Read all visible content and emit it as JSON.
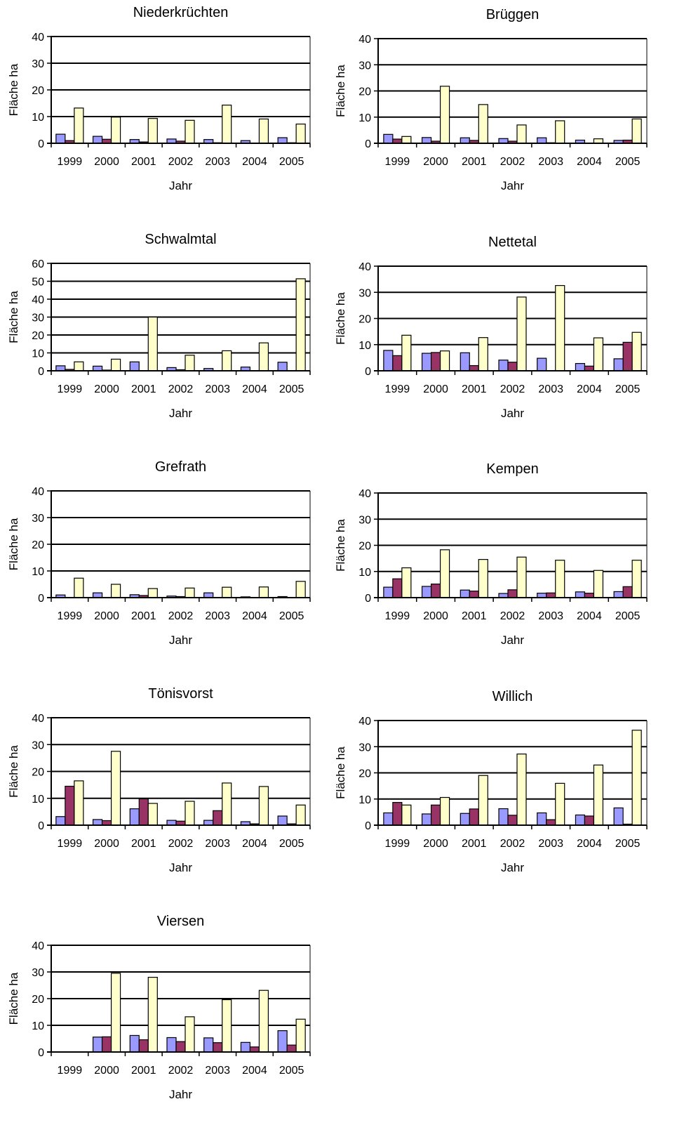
{
  "series_colors": [
    "#9999ff",
    "#993366",
    "#ffffcc"
  ],
  "chart_data": [
    {
      "type": "bar",
      "title": "Niederkrüchten",
      "xlabel": "Jahr",
      "ylabel": "Fläche ha",
      "categories": [
        "1999",
        "2000",
        "2001",
        "2002",
        "2003",
        "2004",
        "2005"
      ],
      "ylim": [
        0,
        40
      ],
      "yticks": [
        "0",
        "10",
        "20",
        "30",
        "40"
      ],
      "grid": true,
      "series": [
        {
          "values": [
            3.4,
            2.6,
            1.4,
            1.6,
            1.4,
            1.0,
            2.1
          ]
        },
        {
          "values": [
            1.0,
            1.5,
            0.5,
            0.8,
            0.2,
            0.0,
            0.2
          ]
        },
        {
          "values": [
            13.2,
            9.8,
            9.3,
            8.6,
            14.3,
            9.1,
            7.2
          ]
        }
      ]
    },
    {
      "type": "bar",
      "title": "Brüggen",
      "xlabel": "Jahr",
      "ylabel": "Fläche ha",
      "categories": [
        "1999",
        "2000",
        "2001",
        "2002",
        "2003",
        "2004",
        "2005"
      ],
      "ylim": [
        0,
        40
      ],
      "yticks": [
        "0",
        "10",
        "20",
        "30",
        "40"
      ],
      "grid": true,
      "series": [
        {
          "values": [
            3.4,
            2.2,
            2.1,
            1.8,
            2.1,
            1.2,
            1.1
          ]
        },
        {
          "values": [
            1.6,
            0.8,
            1.1,
            0.8,
            0.2,
            0.0,
            1.2
          ]
        },
        {
          "values": [
            2.6,
            21.8,
            14.8,
            7.0,
            8.6,
            1.7,
            9.3
          ]
        }
      ]
    },
    {
      "type": "bar",
      "title": "Schwalmtal",
      "xlabel": "Jahr",
      "ylabel": "Fläche ha",
      "categories": [
        "1999",
        "2000",
        "2001",
        "2002",
        "2003",
        "2004",
        "2005"
      ],
      "ylim": [
        0,
        60
      ],
      "yticks": [
        "0",
        "10",
        "20",
        "30",
        "40",
        "50",
        "60"
      ],
      "grid": true,
      "series": [
        {
          "values": [
            2.8,
            2.6,
            5.0,
            1.8,
            1.3,
            2.1,
            4.8
          ]
        },
        {
          "values": [
            0.8,
            0.4,
            0.0,
            0.6,
            0.0,
            0.0,
            0.0
          ]
        },
        {
          "values": [
            5.0,
            6.5,
            30.0,
            8.7,
            11.2,
            15.6,
            51.4
          ]
        }
      ]
    },
    {
      "type": "bar",
      "title": "Nettetal",
      "xlabel": "Jahr",
      "ylabel": "Fläche ha",
      "categories": [
        "1999",
        "2000",
        "2001",
        "2002",
        "2003",
        "2004",
        "2005"
      ],
      "ylim": [
        0,
        40
      ],
      "yticks": [
        "0",
        "10",
        "20",
        "30",
        "40"
      ],
      "grid": true,
      "series": [
        {
          "values": [
            7.8,
            6.7,
            6.9,
            4.1,
            4.8,
            2.8,
            4.6
          ]
        },
        {
          "values": [
            5.8,
            7.0,
            2.0,
            3.3,
            0.0,
            1.8,
            10.9
          ]
        },
        {
          "values": [
            13.6,
            7.6,
            12.7,
            28.2,
            32.6,
            12.6,
            14.7
          ]
        }
      ]
    },
    {
      "type": "bar",
      "title": "Grefrath",
      "xlabel": "Jahr",
      "ylabel": "Fläche ha",
      "categories": [
        "1999",
        "2000",
        "2001",
        "2002",
        "2003",
        "2004",
        "2005"
      ],
      "ylim": [
        0,
        40
      ],
      "yticks": [
        "0",
        "10",
        "20",
        "30",
        "40"
      ],
      "grid": true,
      "series": [
        {
          "values": [
            1.0,
            1.8,
            1.1,
            0.6,
            1.8,
            0.3,
            0.4
          ]
        },
        {
          "values": [
            0.0,
            0.0,
            0.8,
            0.4,
            0.0,
            0.0,
            0.0
          ]
        },
        {
          "values": [
            7.3,
            5.0,
            3.4,
            3.6,
            3.9,
            4.0,
            6.1
          ]
        }
      ]
    },
    {
      "type": "bar",
      "title": "Kempen",
      "xlabel": "Jahr",
      "ylabel": "Fläche ha",
      "categories": [
        "1999",
        "2000",
        "2001",
        "2002",
        "2003",
        "2004",
        "2005"
      ],
      "ylim": [
        0,
        40
      ],
      "yticks": [
        "0",
        "10",
        "20",
        "30",
        "40"
      ],
      "grid": true,
      "series": [
        {
          "values": [
            4.0,
            4.3,
            2.9,
            1.6,
            1.7,
            2.2,
            2.3
          ]
        },
        {
          "values": [
            7.2,
            5.2,
            2.5,
            3.0,
            1.8,
            1.7,
            4.2
          ]
        },
        {
          "values": [
            11.4,
            18.3,
            14.6,
            15.5,
            14.3,
            10.4,
            14.3
          ]
        }
      ]
    },
    {
      "type": "bar",
      "title": "Tönisvorst",
      "xlabel": "Jahr",
      "ylabel": "Fläche ha",
      "categories": [
        "1999",
        "2000",
        "2001",
        "2002",
        "2003",
        "2004",
        "2005"
      ],
      "ylim": [
        0,
        40
      ],
      "yticks": [
        "0",
        "10",
        "20",
        "30",
        "40"
      ],
      "grid": true,
      "series": [
        {
          "values": [
            3.2,
            2.1,
            6.1,
            1.8,
            1.8,
            1.3,
            3.4
          ]
        },
        {
          "values": [
            14.5,
            1.7,
            9.8,
            1.5,
            5.4,
            0.5,
            0.5
          ]
        },
        {
          "values": [
            16.5,
            27.5,
            8.1,
            8.9,
            15.7,
            14.4,
            7.5
          ]
        }
      ]
    },
    {
      "type": "bar",
      "title": "Willich",
      "xlabel": "Jahr",
      "ylabel": "Fläche ha",
      "categories": [
        "1999",
        "2000",
        "2001",
        "2002",
        "2003",
        "2004",
        "2005"
      ],
      "ylim": [
        0,
        40
      ],
      "yticks": [
        "0",
        "10",
        "20",
        "30",
        "40"
      ],
      "grid": true,
      "series": [
        {
          "values": [
            4.7,
            4.3,
            4.5,
            6.3,
            4.7,
            3.9,
            6.6
          ]
        },
        {
          "values": [
            8.7,
            7.7,
            6.2,
            3.8,
            2.1,
            3.5,
            0.4
          ]
        },
        {
          "values": [
            7.7,
            10.6,
            19.0,
            27.2,
            16.0,
            23.0,
            36.3
          ]
        }
      ]
    },
    {
      "type": "bar",
      "title": "Viersen",
      "xlabel": "Jahr",
      "ylabel": "Fläche ha",
      "categories": [
        "1999",
        "2000",
        "2001",
        "2002",
        "2003",
        "2004",
        "2005"
      ],
      "ylim": [
        0,
        40
      ],
      "yticks": [
        "0",
        "10",
        "20",
        "30",
        "40"
      ],
      "grid": true,
      "series": [
        {
          "values": [
            0.0,
            5.6,
            6.2,
            5.4,
            5.3,
            3.6,
            8.0
          ]
        },
        {
          "values": [
            0.0,
            5.7,
            4.6,
            3.9,
            3.5,
            1.9,
            2.6
          ]
        },
        {
          "values": [
            0.0,
            29.5,
            28.0,
            13.2,
            19.6,
            23.1,
            12.3
          ]
        }
      ]
    }
  ]
}
